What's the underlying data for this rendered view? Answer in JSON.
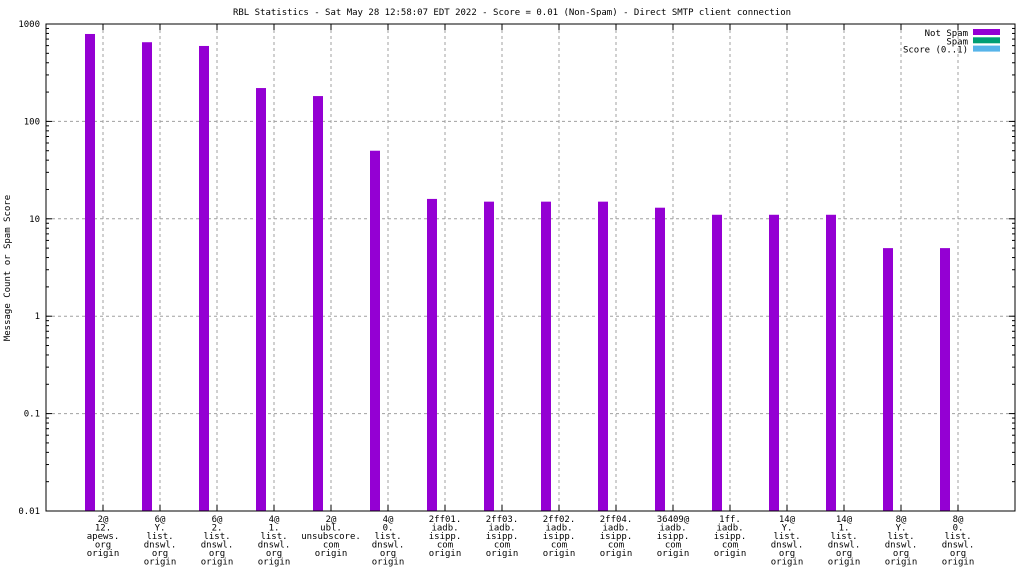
{
  "chart_data": {
    "type": "bar",
    "title": "RBL Statistics - Sat May 28 12:58:07 EDT 2022 - Score = 0.01 (Non-Spam) - Direct SMTP client connection",
    "xlabel": "",
    "ylabel": "Message Count or Spam Score",
    "yscale": "log",
    "ylim": [
      0.01,
      1000
    ],
    "yticks": [
      "0.01",
      "0.1",
      "1",
      "10",
      "100",
      "1000"
    ],
    "grid": true,
    "legend_position": "top-right",
    "categories": [
      [
        "2@",
        "12.",
        "apews.",
        "org",
        "origin"
      ],
      [
        "6@",
        "Y.",
        "list.",
        "dnswl.",
        "org",
        "origin"
      ],
      [
        "6@",
        "2.",
        "list.",
        "dnswl.",
        "org",
        "origin"
      ],
      [
        "4@",
        "1.",
        "list.",
        "dnswl.",
        "org",
        "origin"
      ],
      [
        "2@",
        "ubl.",
        "unsubscore.",
        "com",
        "origin"
      ],
      [
        "4@",
        "0.",
        "list.",
        "dnswl.",
        "org",
        "origin"
      ],
      [
        "2ff01.",
        "iadb.",
        "isipp.",
        "com",
        "origin"
      ],
      [
        "2ff03.",
        "iadb.",
        "isipp.",
        "com",
        "origin"
      ],
      [
        "2ff02.",
        "iadb.",
        "isipp.",
        "com",
        "origin"
      ],
      [
        "2ff04.",
        "iadb.",
        "isipp.",
        "com",
        "origin"
      ],
      [
        "36409@",
        "iadb.",
        "isipp.",
        "com",
        "origin"
      ],
      [
        "1ff.",
        "iadb.",
        "isipp.",
        "com",
        "origin"
      ],
      [
        "14@",
        "Y.",
        "list.",
        "dnswl.",
        "org",
        "origin"
      ],
      [
        "14@",
        "1.",
        "list.",
        "dnswl.",
        "org",
        "origin"
      ],
      [
        "8@",
        "Y.",
        "list.",
        "dnswl.",
        "org",
        "origin"
      ],
      [
        "8@",
        "0.",
        "list.",
        "dnswl.",
        "org",
        "origin"
      ]
    ],
    "series": [
      {
        "name": "Not Spam",
        "color": "#9400d3",
        "values": [
          790,
          650,
          595,
          220,
          182,
          50,
          16,
          15,
          15,
          15,
          13,
          11,
          11,
          11,
          5,
          5
        ]
      },
      {
        "name": "Spam",
        "color": "#009e73",
        "values": [
          0,
          0,
          0,
          0,
          0,
          0,
          0,
          0,
          0,
          0,
          0,
          0,
          0,
          0,
          0,
          0
        ]
      },
      {
        "name": "Score (0..1)",
        "color": "#56b4e9",
        "values": [
          0,
          0,
          0,
          0,
          0,
          0,
          0,
          0,
          0,
          0,
          0,
          0,
          0,
          0,
          0,
          0
        ]
      }
    ]
  }
}
